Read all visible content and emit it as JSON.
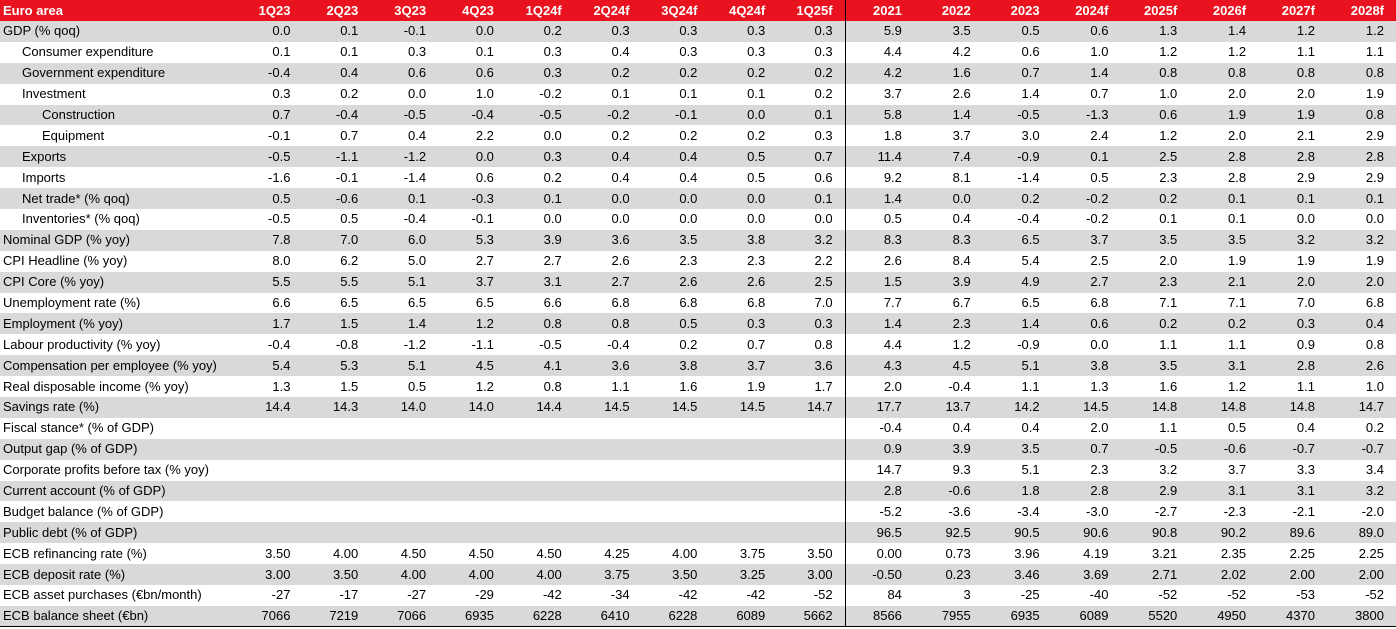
{
  "table": {
    "header": {
      "label": "Euro area",
      "quarters": [
        "1Q23",
        "2Q23",
        "3Q23",
        "4Q23",
        "1Q24f",
        "2Q24f",
        "3Q24f",
        "4Q24f",
        "1Q25f"
      ],
      "years": [
        "2021",
        "2022",
        "2023",
        "2024f",
        "2025f",
        "2026f",
        "2027f",
        "2028f"
      ]
    },
    "rows": [
      {
        "label": "GDP (% qoq)",
        "indent": 0,
        "q": [
          "0.0",
          "0.1",
          "-0.1",
          "0.0",
          "0.2",
          "0.3",
          "0.3",
          "0.3",
          "0.3"
        ],
        "y": [
          "5.9",
          "3.5",
          "0.5",
          "0.6",
          "1.3",
          "1.4",
          "1.2",
          "1.2"
        ]
      },
      {
        "label": "Consumer expenditure",
        "indent": 1,
        "q": [
          "0.1",
          "0.1",
          "0.3",
          "0.1",
          "0.3",
          "0.4",
          "0.3",
          "0.3",
          "0.3"
        ],
        "y": [
          "4.4",
          "4.2",
          "0.6",
          "1.0",
          "1.2",
          "1.2",
          "1.1",
          "1.1"
        ]
      },
      {
        "label": "Government expenditure",
        "indent": 1,
        "q": [
          "-0.4",
          "0.4",
          "0.6",
          "0.6",
          "0.3",
          "0.2",
          "0.2",
          "0.2",
          "0.2"
        ],
        "y": [
          "4.2",
          "1.6",
          "0.7",
          "1.4",
          "0.8",
          "0.8",
          "0.8",
          "0.8"
        ]
      },
      {
        "label": "Investment",
        "indent": 1,
        "q": [
          "0.3",
          "0.2",
          "0.0",
          "1.0",
          "-0.2",
          "0.1",
          "0.1",
          "0.1",
          "0.2"
        ],
        "y": [
          "3.7",
          "2.6",
          "1.4",
          "0.7",
          "1.0",
          "2.0",
          "2.0",
          "1.9"
        ]
      },
      {
        "label": "Construction",
        "indent": 2,
        "q": [
          "0.7",
          "-0.4",
          "-0.5",
          "-0.4",
          "-0.5",
          "-0.2",
          "-0.1",
          "0.0",
          "0.1"
        ],
        "y": [
          "5.8",
          "1.4",
          "-0.5",
          "-1.3",
          "0.6",
          "1.9",
          "1.9",
          "0.8"
        ]
      },
      {
        "label": "Equipment",
        "indent": 2,
        "q": [
          "-0.1",
          "0.7",
          "0.4",
          "2.2",
          "0.0",
          "0.2",
          "0.2",
          "0.2",
          "0.3"
        ],
        "y": [
          "1.8",
          "3.7",
          "3.0",
          "2.4",
          "1.2",
          "2.0",
          "2.1",
          "2.9"
        ]
      },
      {
        "label": "Exports",
        "indent": 1,
        "q": [
          "-0.5",
          "-1.1",
          "-1.2",
          "0.0",
          "0.3",
          "0.4",
          "0.4",
          "0.5",
          "0.7"
        ],
        "y": [
          "11.4",
          "7.4",
          "-0.9",
          "0.1",
          "2.5",
          "2.8",
          "2.8",
          "2.8"
        ]
      },
      {
        "label": "Imports",
        "indent": 1,
        "q": [
          "-1.6",
          "-0.1",
          "-1.4",
          "0.6",
          "0.2",
          "0.4",
          "0.4",
          "0.5",
          "0.6"
        ],
        "y": [
          "9.2",
          "8.1",
          "-1.4",
          "0.5",
          "2.3",
          "2.8",
          "2.9",
          "2.9"
        ]
      },
      {
        "label": "Net trade* (% qoq)",
        "indent": 1,
        "q": [
          "0.5",
          "-0.6",
          "0.1",
          "-0.3",
          "0.1",
          "0.0",
          "0.0",
          "0.0",
          "0.1"
        ],
        "y": [
          "1.4",
          "0.0",
          "0.2",
          "-0.2",
          "0.2",
          "0.1",
          "0.1",
          "0.1"
        ]
      },
      {
        "label": "Inventories* (% qoq)",
        "indent": 1,
        "q": [
          "-0.5",
          "0.5",
          "-0.4",
          "-0.1",
          "0.0",
          "0.0",
          "0.0",
          "0.0",
          "0.0"
        ],
        "y": [
          "0.5",
          "0.4",
          "-0.4",
          "-0.2",
          "0.1",
          "0.1",
          "0.0",
          "0.0"
        ]
      },
      {
        "label": "Nominal GDP (% yoy)",
        "indent": 0,
        "q": [
          "7.8",
          "7.0",
          "6.0",
          "5.3",
          "3.9",
          "3.6",
          "3.5",
          "3.8",
          "3.2"
        ],
        "y": [
          "8.3",
          "8.3",
          "6.5",
          "3.7",
          "3.5",
          "3.5",
          "3.2",
          "3.2"
        ]
      },
      {
        "label": "CPI Headline (% yoy)",
        "indent": 0,
        "q": [
          "8.0",
          "6.2",
          "5.0",
          "2.7",
          "2.7",
          "2.6",
          "2.3",
          "2.3",
          "2.2"
        ],
        "y": [
          "2.6",
          "8.4",
          "5.4",
          "2.5",
          "2.0",
          "1.9",
          "1.9",
          "1.9"
        ]
      },
      {
        "label": "CPI Core (% yoy)",
        "indent": 0,
        "q": [
          "5.5",
          "5.5",
          "5.1",
          "3.7",
          "3.1",
          "2.7",
          "2.6",
          "2.6",
          "2.5"
        ],
        "y": [
          "1.5",
          "3.9",
          "4.9",
          "2.7",
          "2.3",
          "2.1",
          "2.0",
          "2.0"
        ]
      },
      {
        "label": "Unemployment rate (%)",
        "indent": 0,
        "q": [
          "6.6",
          "6.5",
          "6.5",
          "6.5",
          "6.6",
          "6.8",
          "6.8",
          "6.8",
          "7.0"
        ],
        "y": [
          "7.7",
          "6.7",
          "6.5",
          "6.8",
          "7.1",
          "7.1",
          "7.0",
          "6.8"
        ]
      },
      {
        "label": "Employment (% yoy)",
        "indent": 0,
        "q": [
          "1.7",
          "1.5",
          "1.4",
          "1.2",
          "0.8",
          "0.8",
          "0.5",
          "0.3",
          "0.3"
        ],
        "y": [
          "1.4",
          "2.3",
          "1.4",
          "0.6",
          "0.2",
          "0.2",
          "0.3",
          "0.4"
        ]
      },
      {
        "label": "Labour productivity (% yoy)",
        "indent": 0,
        "q": [
          "-0.4",
          "-0.8",
          "-1.2",
          "-1.1",
          "-0.5",
          "-0.4",
          "0.2",
          "0.7",
          "0.8"
        ],
        "y": [
          "4.4",
          "1.2",
          "-0.9",
          "0.0",
          "1.1",
          "1.1",
          "0.9",
          "0.8"
        ]
      },
      {
        "label": "Compensation per employee (% yoy)",
        "indent": 0,
        "q": [
          "5.4",
          "5.3",
          "5.1",
          "4.5",
          "4.1",
          "3.6",
          "3.8",
          "3.7",
          "3.6"
        ],
        "y": [
          "4.3",
          "4.5",
          "5.1",
          "3.8",
          "3.5",
          "3.1",
          "2.8",
          "2.6"
        ]
      },
      {
        "label": "Real disposable income (% yoy)",
        "indent": 0,
        "q": [
          "1.3",
          "1.5",
          "0.5",
          "1.2",
          "0.8",
          "1.1",
          "1.6",
          "1.9",
          "1.7"
        ],
        "y": [
          "2.0",
          "-0.4",
          "1.1",
          "1.3",
          "1.6",
          "1.2",
          "1.1",
          "1.0"
        ]
      },
      {
        "label": "Savings rate (%)",
        "indent": 0,
        "q": [
          "14.4",
          "14.3",
          "14.0",
          "14.0",
          "14.4",
          "14.5",
          "14.5",
          "14.5",
          "14.7"
        ],
        "y": [
          "17.7",
          "13.7",
          "14.2",
          "14.5",
          "14.8",
          "14.8",
          "14.8",
          "14.7"
        ]
      },
      {
        "label": "Fiscal stance* (% of GDP)",
        "indent": 0,
        "q": [
          "",
          "",
          "",
          "",
          "",
          "",
          "",
          "",
          ""
        ],
        "y": [
          "-0.4",
          "0.4",
          "0.4",
          "2.0",
          "1.1",
          "0.5",
          "0.4",
          "0.2"
        ]
      },
      {
        "label": "Output gap (% of GDP)",
        "indent": 0,
        "q": [
          "",
          "",
          "",
          "",
          "",
          "",
          "",
          "",
          ""
        ],
        "y": [
          "0.9",
          "3.9",
          "3.5",
          "0.7",
          "-0.5",
          "-0.6",
          "-0.7",
          "-0.7"
        ]
      },
      {
        "label": "Corporate profits before tax (% yoy)",
        "indent": 0,
        "q": [
          "",
          "",
          "",
          "",
          "",
          "",
          "",
          "",
          ""
        ],
        "y": [
          "14.7",
          "9.3",
          "5.1",
          "2.3",
          "3.2",
          "3.7",
          "3.3",
          "3.4"
        ]
      },
      {
        "label": "Current account (% of GDP)",
        "indent": 0,
        "q": [
          "",
          "",
          "",
          "",
          "",
          "",
          "",
          "",
          ""
        ],
        "y": [
          "2.8",
          "-0.6",
          "1.8",
          "2.8",
          "2.9",
          "3.1",
          "3.1",
          "3.2"
        ]
      },
      {
        "label": "Budget balance (% of GDP)",
        "indent": 0,
        "q": [
          "",
          "",
          "",
          "",
          "",
          "",
          "",
          "",
          ""
        ],
        "y": [
          "-5.2",
          "-3.6",
          "-3.4",
          "-3.0",
          "-2.7",
          "-2.3",
          "-2.1",
          "-2.0"
        ]
      },
      {
        "label": "Public debt (% of GDP)",
        "indent": 0,
        "q": [
          "",
          "",
          "",
          "",
          "",
          "",
          "",
          "",
          ""
        ],
        "y": [
          "96.5",
          "92.5",
          "90.5",
          "90.6",
          "90.8",
          "90.2",
          "89.6",
          "89.0"
        ]
      },
      {
        "label": "ECB refinancing rate (%)",
        "indent": 0,
        "q": [
          "3.50",
          "4.00",
          "4.50",
          "4.50",
          "4.50",
          "4.25",
          "4.00",
          "3.75",
          "3.50"
        ],
        "y": [
          "0.00",
          "0.73",
          "3.96",
          "4.19",
          "3.21",
          "2.35",
          "2.25",
          "2.25"
        ]
      },
      {
        "label": "ECB deposit rate (%)",
        "indent": 0,
        "q": [
          "3.00",
          "3.50",
          "4.00",
          "4.00",
          "4.00",
          "3.75",
          "3.50",
          "3.25",
          "3.00"
        ],
        "y": [
          "-0.50",
          "0.23",
          "3.46",
          "3.69",
          "2.71",
          "2.02",
          "2.00",
          "2.00"
        ]
      },
      {
        "label": "ECB asset purchases (€bn/month)",
        "indent": 0,
        "q": [
          "-27",
          "-17",
          "-27",
          "-29",
          "-42",
          "-34",
          "-42",
          "-42",
          "-52"
        ],
        "y": [
          "84",
          "3",
          "-25",
          "-40",
          "-52",
          "-52",
          "-53",
          "-52"
        ]
      },
      {
        "label": "ECB balance sheet (€bn)",
        "indent": 0,
        "q": [
          "7066",
          "7219",
          "7066",
          "6935",
          "6228",
          "6410",
          "6228",
          "6089",
          "5662"
        ],
        "y": [
          "8566",
          "7955",
          "6935",
          "6089",
          "5520",
          "4950",
          "4370",
          "3800"
        ]
      }
    ]
  }
}
